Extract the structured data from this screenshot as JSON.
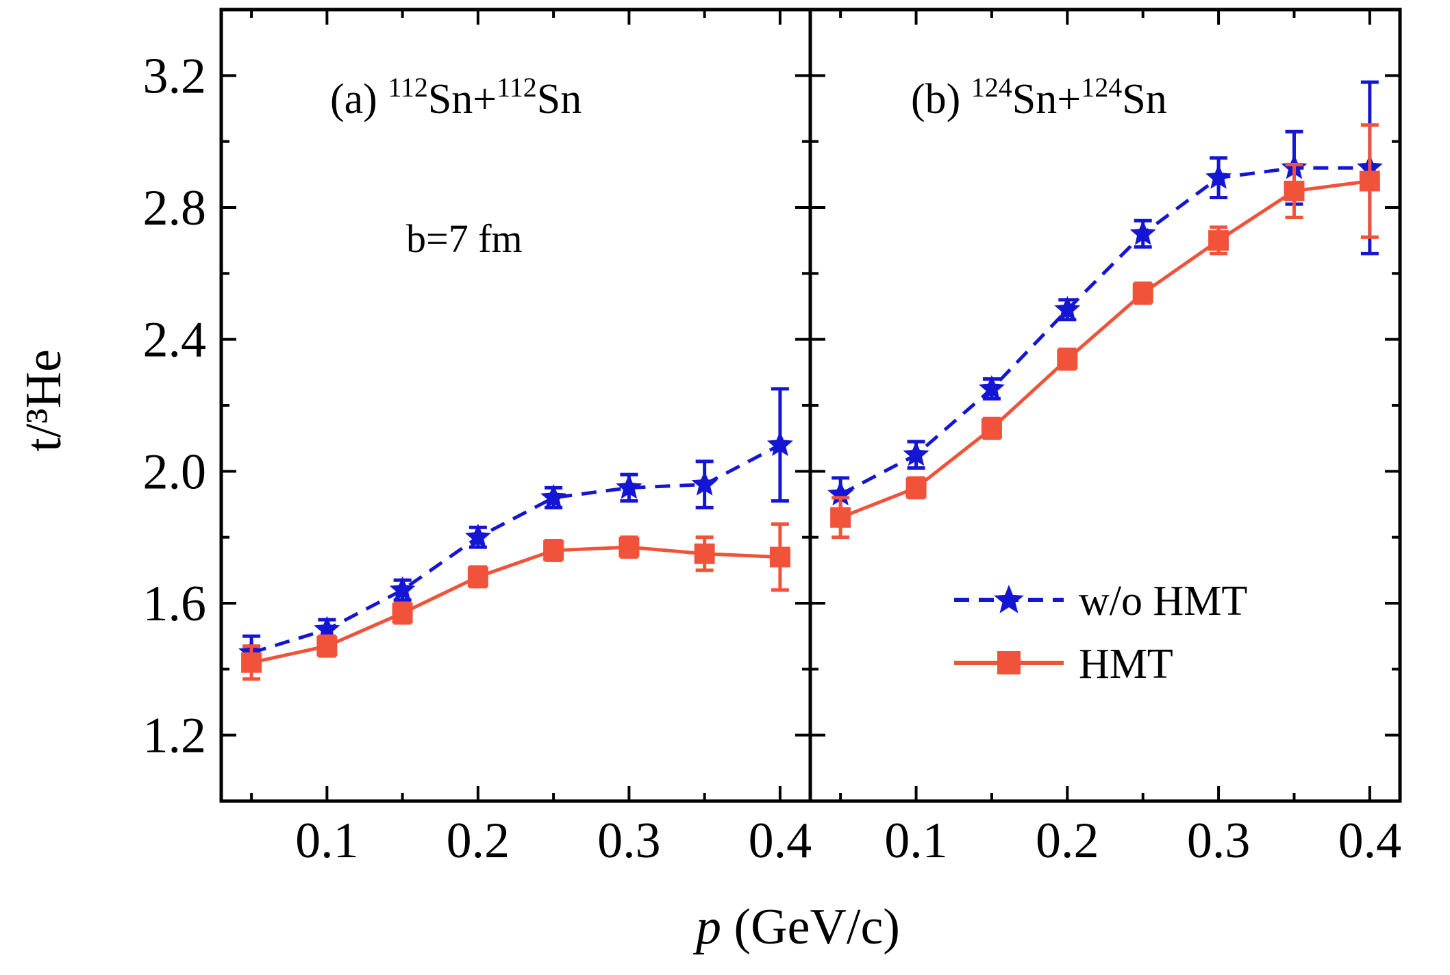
{
  "figure": {
    "ylabel": "t/³He",
    "xlabel_var": "p",
    "xlabel_unit": " (GeV/c)",
    "annotation": "b=7 fm"
  },
  "legend": [
    {
      "label": "w/o HMT",
      "color": "#1515d4",
      "marker": "star",
      "line": "dashed"
    },
    {
      "label": "HMT",
      "color": "#f0533a",
      "marker": "square",
      "line": "solid"
    }
  ],
  "chart_data": [
    {
      "type": "line",
      "panel": "(a)",
      "title_prefix": "(a) ",
      "title_mass1": "112",
      "title_elem1": "Sn+",
      "title_mass2": "112",
      "title_elem2": "Sn",
      "xlabel": "p (GeV/c)",
      "ylabel": "t/³He",
      "xlim": [
        0.03,
        0.42
      ],
      "ylim": [
        1.0,
        3.4
      ],
      "xticks": [
        0.1,
        0.2,
        0.3,
        0.4
      ],
      "xticklabels": [
        "0.1",
        "0.2",
        "0.3",
        "0.4"
      ],
      "yticks": [
        1.2,
        1.6,
        2.0,
        2.4,
        2.8,
        3.2
      ],
      "yticklabels": [
        "1.2",
        "1.6",
        "2.0",
        "2.4",
        "2.8",
        "3.2"
      ],
      "x": [
        0.05,
        0.1,
        0.15,
        0.2,
        0.25,
        0.3,
        0.35,
        0.4
      ],
      "series": [
        {
          "name": "w/o HMT",
          "values": [
            1.45,
            1.52,
            1.64,
            1.8,
            1.92,
            1.95,
            1.96,
            2.08
          ],
          "errors": [
            0.05,
            0.03,
            0.03,
            0.03,
            0.03,
            0.04,
            0.07,
            0.17
          ]
        },
        {
          "name": "HMT",
          "values": [
            1.42,
            1.47,
            1.57,
            1.68,
            1.76,
            1.77,
            1.75,
            1.74
          ],
          "errors": [
            0.05,
            0.03,
            0.03,
            0.03,
            0.03,
            0.03,
            0.05,
            0.1
          ]
        }
      ]
    },
    {
      "type": "line",
      "panel": "(b)",
      "title_prefix": "(b) ",
      "title_mass1": "124",
      "title_elem1": "Sn+",
      "title_mass2": "124",
      "title_elem2": "Sn",
      "xlabel": "p (GeV/c)",
      "ylabel": "t/³He",
      "xlim": [
        0.03,
        0.42
      ],
      "ylim": [
        1.0,
        3.4
      ],
      "xticks": [
        0.1,
        0.2,
        0.3,
        0.4
      ],
      "xticklabels": [
        "0.1",
        "0.2",
        "0.3",
        "0.4"
      ],
      "yticks": [
        1.2,
        1.6,
        2.0,
        2.4,
        2.8,
        3.2
      ],
      "x": [
        0.05,
        0.1,
        0.15,
        0.2,
        0.25,
        0.3,
        0.35,
        0.4
      ],
      "series": [
        {
          "name": "w/o HMT",
          "values": [
            1.93,
            2.05,
            2.25,
            2.49,
            2.72,
            2.89,
            2.92,
            2.92
          ],
          "errors": [
            0.05,
            0.04,
            0.03,
            0.03,
            0.04,
            0.06,
            0.11,
            0.26
          ]
        },
        {
          "name": "HMT",
          "values": [
            1.86,
            1.95,
            2.13,
            2.34,
            2.54,
            2.7,
            2.85,
            2.88
          ],
          "errors": [
            0.06,
            0.03,
            0.03,
            0.03,
            0.03,
            0.04,
            0.08,
            0.17
          ]
        }
      ]
    }
  ]
}
